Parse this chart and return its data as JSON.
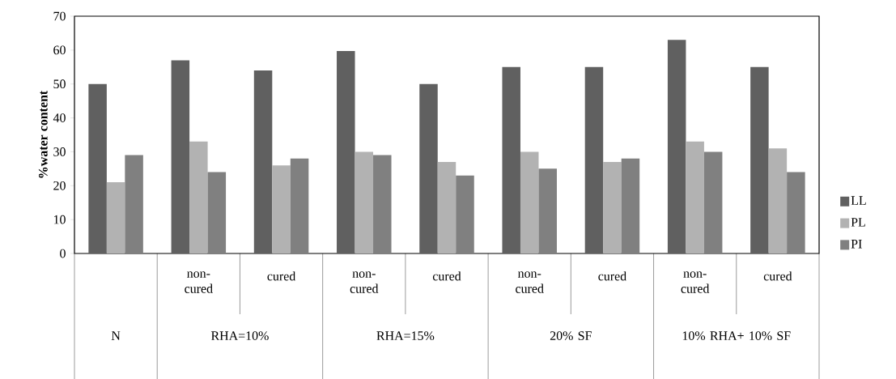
{
  "chart_data": {
    "type": "bar",
    "ylabel": "%water content",
    "categories": [
      null,
      "non-cured",
      "cured",
      "non-cured",
      "cured",
      "non-cured",
      "cured",
      "non-cured",
      "cured"
    ],
    "annotations": [
      "N",
      "RHA=10%",
      "RHA=15%",
      "20% SF",
      "10% RHA+ 10% SF"
    ],
    "series": [
      {
        "name": "LL",
        "color": "#606060",
        "values": [
          50,
          57,
          54,
          59.7,
          50,
          55,
          55,
          63,
          55
        ]
      },
      {
        "name": "PL",
        "color": "#b2b2b2",
        "values": [
          21,
          33,
          26,
          30,
          27,
          30,
          27,
          33,
          31
        ]
      },
      {
        "name": "PI",
        "color": "#808080",
        "values": [
          29,
          24,
          28,
          29,
          23,
          25,
          28,
          30,
          24
        ]
      }
    ],
    "ylim": [
      0,
      70
    ],
    "yticks": [
      0,
      10,
      20,
      30,
      40,
      50,
      60,
      70
    ],
    "grid": false,
    "legend": "right"
  }
}
